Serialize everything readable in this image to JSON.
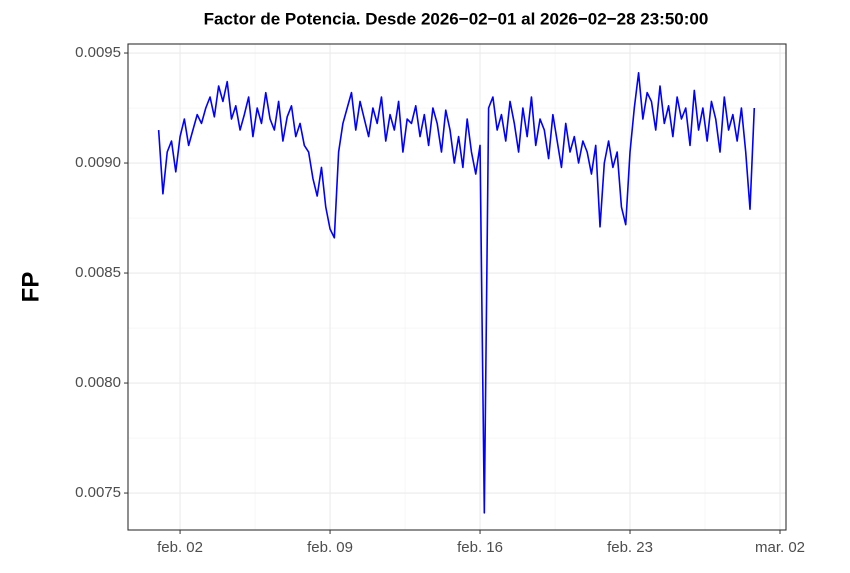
{
  "chart_data": {
    "type": "line",
    "title": "Factor de Potencia. Desde  2026−02−01  al  2026−02−28 23:50:00",
    "y_label": "FP",
    "x": [
      1,
      1.2,
      1.4,
      1.6,
      1.8,
      2,
      2.2,
      2.4,
      2.6,
      2.8,
      3,
      3.2,
      3.4,
      3.6,
      3.8,
      4,
      4.2,
      4.4,
      4.6,
      4.8,
      5,
      5.2,
      5.4,
      5.6,
      5.8,
      6,
      6.2,
      6.4,
      6.6,
      6.8,
      7,
      7.2,
      7.4,
      7.6,
      7.8,
      8,
      8.2,
      8.4,
      8.6,
      8.8,
      9,
      9.2,
      9.4,
      9.6,
      9.8,
      10,
      10.2,
      10.4,
      10.6,
      10.8,
      11,
      11.2,
      11.4,
      11.6,
      11.8,
      12,
      12.2,
      12.4,
      12.6,
      12.8,
      13,
      13.2,
      13.4,
      13.6,
      13.8,
      14,
      14.2,
      14.4,
      14.6,
      14.8,
      15,
      15.2,
      15.4,
      15.6,
      15.8,
      16,
      16.2,
      16.4,
      16.6,
      16.8,
      17,
      17.2,
      17.4,
      17.6,
      17.8,
      18,
      18.2,
      18.4,
      18.6,
      18.8,
      19,
      19.2,
      19.4,
      19.6,
      19.8,
      20,
      20.2,
      20.4,
      20.6,
      20.8,
      21,
      21.2,
      21.4,
      21.6,
      21.8,
      22,
      22.2,
      22.4,
      22.6,
      22.8,
      23,
      23.2,
      23.4,
      23.6,
      23.8,
      24,
      24.2,
      24.4,
      24.6,
      24.8,
      25,
      25.2,
      25.4,
      25.6,
      25.8,
      26,
      26.2,
      26.4,
      26.6,
      26.8,
      27,
      27.2,
      27.4,
      27.6,
      27.8,
      28,
      28.2,
      28.4,
      28.6,
      28.8
    ],
    "series": [
      {
        "color": "#0000ff",
        "values": [
          0.00915,
          0.00886,
          0.00905,
          0.0091,
          0.00896,
          0.00912,
          0.0092,
          0.00908,
          0.00915,
          0.00922,
          0.00918,
          0.00925,
          0.0093,
          0.00921,
          0.00935,
          0.00928,
          0.00937,
          0.0092,
          0.00926,
          0.00915,
          0.00922,
          0.0093,
          0.00912,
          0.00925,
          0.00918,
          0.00932,
          0.0092,
          0.00915,
          0.00928,
          0.0091,
          0.00921,
          0.00926,
          0.00912,
          0.00918,
          0.00908,
          0.00905,
          0.00893,
          0.00885,
          0.00898,
          0.0088,
          0.0087,
          0.00866,
          0.00905,
          0.00918,
          0.00925,
          0.00932,
          0.00915,
          0.00928,
          0.0092,
          0.00912,
          0.00925,
          0.00918,
          0.0093,
          0.0091,
          0.00922,
          0.00915,
          0.00928,
          0.00905,
          0.0092,
          0.00918,
          0.00926,
          0.00912,
          0.00922,
          0.00908,
          0.00925,
          0.00918,
          0.00905,
          0.00924,
          0.00915,
          0.009,
          0.00912,
          0.00898,
          0.0092,
          0.00905,
          0.00895,
          0.00908,
          0.00741,
          0.00925,
          0.0093,
          0.00915,
          0.00922,
          0.0091,
          0.00928,
          0.00918,
          0.00905,
          0.00925,
          0.00912,
          0.0093,
          0.00908,
          0.0092,
          0.00915,
          0.00902,
          0.00922,
          0.0091,
          0.00898,
          0.00918,
          0.00905,
          0.00912,
          0.009,
          0.0091,
          0.00905,
          0.00895,
          0.00908,
          0.00871,
          0.009,
          0.0091,
          0.00898,
          0.00905,
          0.0088,
          0.00872,
          0.00905,
          0.00925,
          0.00941,
          0.0092,
          0.00932,
          0.00928,
          0.00915,
          0.00935,
          0.00918,
          0.00926,
          0.00912,
          0.0093,
          0.0092,
          0.00925,
          0.00908,
          0.00933,
          0.00915,
          0.00925,
          0.0091,
          0.00928,
          0.0092,
          0.00905,
          0.0093,
          0.00915,
          0.00922,
          0.0091,
          0.00925,
          0.00905,
          0.00879,
          0.00925
        ]
      }
    ],
    "xlim": [
      -0.43,
      30.28
    ],
    "xticks": [
      {
        "value": 2,
        "label": "feb. 02"
      },
      {
        "value": 9,
        "label": "feb. 09"
      },
      {
        "value": 16,
        "label": "feb. 16"
      },
      {
        "value": 23,
        "label": "feb. 23"
      },
      {
        "value": 30,
        "label": "mar. 02"
      }
    ],
    "ylim": [
      0.007332,
      0.009541
    ],
    "yticks": [
      0.0075,
      {
        "value": 0.008,
        "label": "0.0080"
      },
      0.0085,
      {
        "value": 0.009,
        "label": "0.0090"
      },
      0.0095
    ],
    "grid": true
  }
}
